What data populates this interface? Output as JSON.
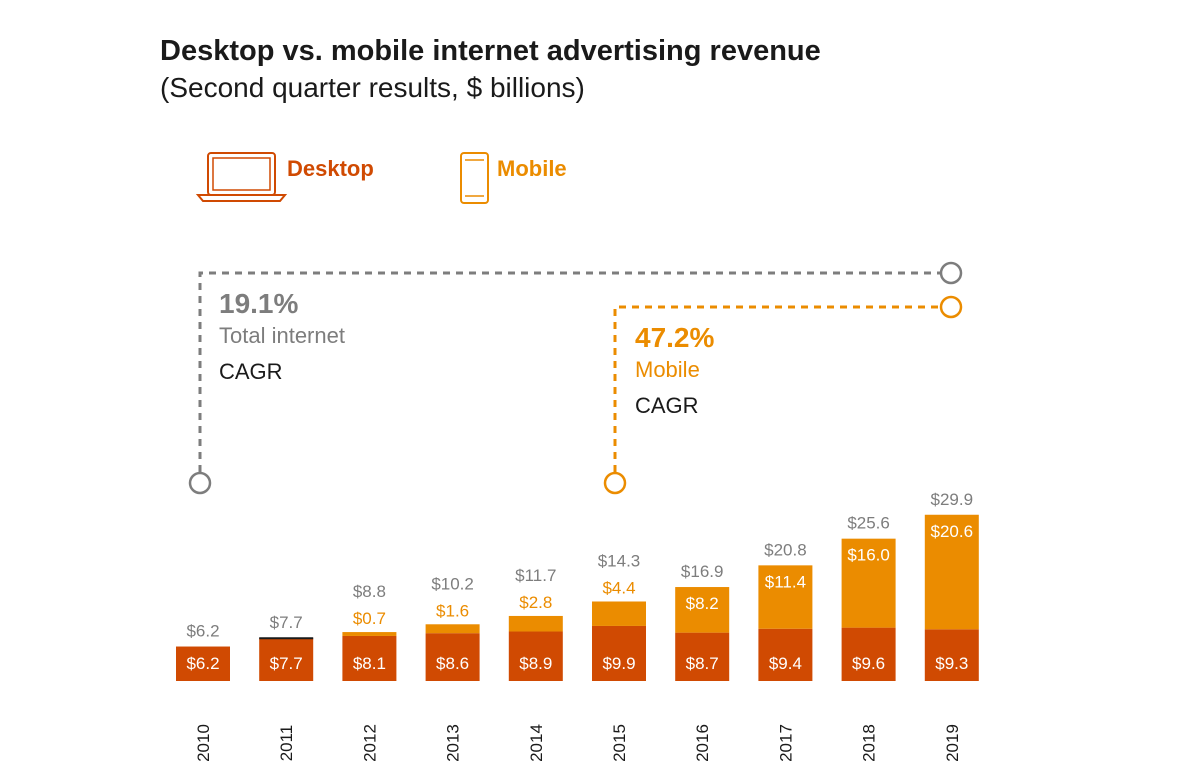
{
  "chart_data": {
    "type": "bar",
    "stacked": true,
    "title": "Desktop vs. mobile internet advertising revenue",
    "subtitle": "(Second quarter results, $ billions)",
    "categories": [
      "2010",
      "2011",
      "2012",
      "2013",
      "2014",
      "2015",
      "2016",
      "2017",
      "2018",
      "2019"
    ],
    "series": [
      {
        "name": "Desktop",
        "values": [
          6.2,
          7.7,
          8.1,
          8.6,
          8.9,
          9.9,
          8.7,
          9.4,
          9.6,
          9.3
        ],
        "labels": [
          "$6.2",
          "$7.7",
          "$8.1",
          "$8.6",
          "$8.9",
          "$9.9",
          "$8.7",
          "$9.4",
          "$9.6",
          "$9.3"
        ]
      },
      {
        "name": "Mobile",
        "values": [
          0,
          0,
          0.7,
          1.6,
          2.8,
          4.4,
          8.2,
          11.4,
          16.0,
          20.6
        ],
        "labels": [
          "",
          "",
          "$0.7",
          "$1.6",
          "$2.8",
          "$4.4",
          "$8.2",
          "$11.4",
          "$16.0",
          "$20.6"
        ]
      }
    ],
    "totals": [
      6.2,
      7.7,
      8.8,
      10.2,
      11.7,
      14.3,
      16.9,
      20.8,
      25.6,
      29.9
    ],
    "total_labels": [
      "$6.2",
      "$7.7",
      "$8.8",
      "$10.2",
      "$11.7",
      "$14.3",
      "$16.9",
      "$20.8",
      "$25.6",
      "$29.9"
    ],
    "annotations": [
      {
        "value": "19.1%",
        "label": "Total internet",
        "sub": "CAGR",
        "from": "2010",
        "to": "2019"
      },
      {
        "value": "47.2%",
        "label": "Mobile",
        "sub": "CAGR",
        "from": "2015",
        "to": "2019"
      }
    ],
    "legend": [
      "Desktop",
      "Mobile"
    ],
    "legend_position": "top-left",
    "grid": false
  },
  "colors": {
    "desktop": "#d04a02",
    "mobile": "#eb8c00",
    "total": "#7d7d7d",
    "text": "#1a1a1a"
  },
  "icons": {
    "desktop": "laptop-icon",
    "mobile": "smartphone-icon"
  }
}
